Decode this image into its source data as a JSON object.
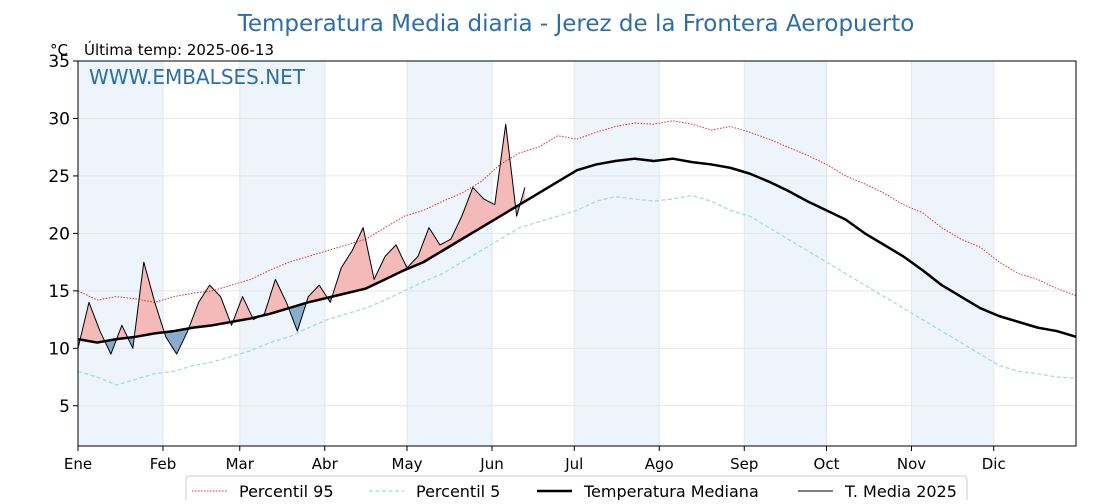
{
  "chart_data": {
    "type": "line",
    "title": "Temperatura Media diaria - Jerez de la Frontera Aeropuerto",
    "unit_label": "°C",
    "last_temp_label": "Última temp: 2025-06-13",
    "watermark": "WWW.EMBALSES.NET",
    "x_ticks": [
      "Ene",
      "Feb",
      "Mar",
      "Abr",
      "May",
      "Jun",
      "Jul",
      "Ago",
      "Sep",
      "Oct",
      "Nov",
      "Dic"
    ],
    "month_start_days": [
      1,
      32,
      60,
      91,
      121,
      152,
      182,
      213,
      244,
      274,
      305,
      335
    ],
    "xlim": [
      1,
      365
    ],
    "ylim": [
      1.5,
      35
    ],
    "y_ticks": [
      5,
      10,
      15,
      20,
      25,
      30,
      35
    ],
    "grid": true,
    "legend_position": "bottom",
    "colors": {
      "title": "#2c6fa6",
      "watermark": "#2c6fa6",
      "p95": "#e03030",
      "p5": "#a8d8e8",
      "median": "#000000",
      "current": "#000000",
      "above_fill": "#f4b9b9",
      "above_fill_strong": "#e8545a",
      "below_fill": "#8aaccc",
      "band": "#eef4fb"
    },
    "series": [
      {
        "name": "Percentil 95",
        "style": "dotted-red",
        "x": [
          1,
          8,
          15,
          22,
          29,
          36,
          43,
          50,
          57,
          64,
          71,
          78,
          85,
          92,
          99,
          106,
          113,
          120,
          127,
          134,
          141,
          148,
          155,
          162,
          169,
          176,
          183,
          190,
          197,
          204,
          211,
          218,
          225,
          232,
          239,
          246,
          253,
          260,
          267,
          274,
          281,
          288,
          295,
          302,
          309,
          316,
          323,
          330,
          337,
          344,
          351,
          358,
          365
        ],
        "y": [
          15.0,
          14.2,
          14.5,
          14.3,
          14.0,
          14.5,
          14.8,
          15.0,
          15.5,
          16.0,
          16.8,
          17.5,
          18.0,
          18.5,
          19.0,
          19.5,
          20.5,
          21.5,
          22.0,
          22.8,
          23.5,
          24.5,
          26.0,
          27.0,
          27.5,
          28.5,
          28.2,
          28.8,
          29.3,
          29.6,
          29.5,
          29.8,
          29.5,
          29.0,
          29.3,
          28.8,
          28.2,
          27.5,
          26.8,
          26.0,
          25.0,
          24.3,
          23.5,
          22.5,
          21.8,
          20.5,
          19.5,
          18.8,
          17.5,
          16.5,
          16.0,
          15.2,
          14.6
        ]
      },
      {
        "name": "Percentil 5",
        "style": "dashed-lightblue",
        "x": [
          1,
          8,
          15,
          22,
          29,
          36,
          43,
          50,
          57,
          64,
          71,
          78,
          85,
          92,
          99,
          106,
          113,
          120,
          127,
          134,
          141,
          148,
          155,
          162,
          169,
          176,
          183,
          190,
          197,
          204,
          211,
          218,
          225,
          232,
          239,
          246,
          253,
          260,
          267,
          274,
          281,
          288,
          295,
          302,
          309,
          316,
          323,
          330,
          337,
          344,
          351,
          358,
          365
        ],
        "y": [
          8.0,
          7.5,
          6.8,
          7.3,
          7.8,
          8.0,
          8.5,
          8.8,
          9.3,
          9.8,
          10.5,
          11.0,
          11.8,
          12.5,
          13.0,
          13.5,
          14.2,
          15.0,
          15.8,
          16.5,
          17.5,
          18.5,
          19.5,
          20.5,
          21.0,
          21.5,
          22.0,
          22.8,
          23.2,
          23.0,
          22.8,
          23.0,
          23.3,
          22.8,
          22.0,
          21.5,
          20.5,
          19.5,
          18.5,
          17.5,
          16.5,
          15.5,
          14.5,
          13.5,
          12.5,
          11.5,
          10.5,
          9.5,
          8.5,
          8.0,
          7.8,
          7.5,
          7.4
        ]
      },
      {
        "name": "Temperatura Mediana",
        "style": "thick-black",
        "x": [
          1,
          8,
          15,
          22,
          29,
          36,
          43,
          50,
          57,
          64,
          71,
          78,
          85,
          92,
          99,
          106,
          113,
          120,
          127,
          134,
          141,
          148,
          155,
          162,
          169,
          176,
          183,
          190,
          197,
          204,
          211,
          218,
          225,
          232,
          239,
          246,
          253,
          260,
          267,
          274,
          281,
          288,
          295,
          302,
          309,
          316,
          323,
          330,
          337,
          344,
          351,
          358,
          365
        ],
        "y": [
          10.8,
          10.5,
          10.8,
          11.0,
          11.3,
          11.5,
          11.8,
          12.0,
          12.3,
          12.6,
          13.0,
          13.5,
          14.0,
          14.4,
          14.8,
          15.2,
          16.0,
          16.8,
          17.5,
          18.5,
          19.5,
          20.5,
          21.5,
          22.5,
          23.5,
          24.5,
          25.5,
          26.0,
          26.3,
          26.5,
          26.3,
          26.5,
          26.2,
          26.0,
          25.7,
          25.2,
          24.5,
          23.7,
          22.8,
          22.0,
          21.2,
          20.0,
          19.0,
          18.0,
          16.8,
          15.5,
          14.5,
          13.5,
          12.8,
          12.3,
          11.8,
          11.5,
          11.0
        ]
      },
      {
        "name": "T. Media 2025",
        "style": "thin-black",
        "x": [
          1,
          5,
          9,
          13,
          17,
          21,
          25,
          29,
          33,
          37,
          41,
          45,
          49,
          53,
          57,
          61,
          65,
          69,
          73,
          77,
          81,
          85,
          89,
          93,
          97,
          101,
          105,
          109,
          113,
          117,
          121,
          125,
          129,
          133,
          137,
          141,
          145,
          149,
          153,
          157,
          161,
          164
        ],
        "y": [
          10.0,
          14.0,
          11.5,
          9.5,
          12.0,
          10.0,
          17.5,
          14.0,
          11.0,
          9.5,
          11.5,
          14.0,
          15.5,
          14.5,
          12.0,
          14.5,
          12.5,
          13.0,
          16.0,
          14.0,
          11.5,
          14.5,
          15.5,
          14.0,
          17.0,
          18.5,
          20.5,
          16.0,
          18.0,
          19.0,
          17.0,
          18.0,
          20.5,
          19.0,
          19.5,
          21.5,
          24.0,
          23.0,
          22.5,
          29.5,
          21.5,
          24.0
        ]
      }
    ]
  }
}
